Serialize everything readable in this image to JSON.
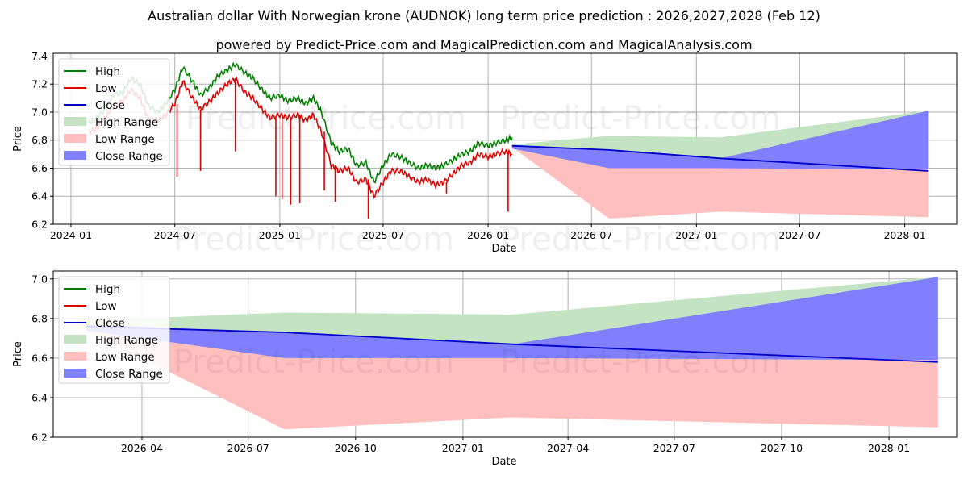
{
  "title": "Australian dollar With Norwegian krone (AUDNOK) long term price prediction : 2026,2027,2028 (Feb 12)",
  "subtitle": "powered by Predict-Price.com and MagicalPrediction.com and MagicalAnalysis.com",
  "watermark": "Predict-Price.com",
  "colors": {
    "high": "#008000",
    "low": "#e00000",
    "close": "#0000cc",
    "high_range": "#c3e3c3",
    "low_range": "#ffbfbf",
    "close_range": "#8080ff",
    "grid": "#b0b0b0"
  },
  "chart_data": [
    {
      "type": "line",
      "panel": "history-and-forecast",
      "xlabel": "Date",
      "ylabel": "Price",
      "xlim": [
        "2023-12-01",
        "2028-04-01"
      ],
      "ylim": [
        6.2,
        7.42
      ],
      "x_ticks": [
        "2024-01",
        "2024-07",
        "2025-01",
        "2025-07",
        "2026-01",
        "2026-07",
        "2027-01",
        "2027-07",
        "2028-01"
      ],
      "y_ticks": [
        6.2,
        6.4,
        6.6,
        6.8,
        7.0,
        7.2,
        7.4
      ],
      "grid": true,
      "legend": {
        "placement": "top-left",
        "entries": [
          "High",
          "Low",
          "Close",
          "High Range",
          "Low Range",
          "Close Range"
        ]
      },
      "history": {
        "dates": [
          "2024-02-01",
          "2024-02-15",
          "2024-03-01",
          "2024-03-15",
          "2024-04-01",
          "2024-04-15",
          "2024-05-01",
          "2024-05-15",
          "2024-06-01",
          "2024-06-15",
          "2024-07-01",
          "2024-07-15",
          "2024-08-01",
          "2024-08-15",
          "2024-09-01",
          "2024-09-15",
          "2024-10-01",
          "2024-10-15",
          "2024-11-01",
          "2024-11-15",
          "2024-12-01",
          "2024-12-15",
          "2025-01-01",
          "2025-01-15",
          "2025-02-01",
          "2025-02-15",
          "2025-03-01",
          "2025-03-15",
          "2025-04-01",
          "2025-04-15",
          "2025-05-01",
          "2025-05-15",
          "2025-06-01",
          "2025-06-15",
          "2025-07-01",
          "2025-07-15",
          "2025-08-01",
          "2025-08-15",
          "2025-09-01",
          "2025-09-15",
          "2025-10-01",
          "2025-10-15",
          "2025-11-01",
          "2025-11-15",
          "2025-12-01",
          "2025-12-15",
          "2026-01-01",
          "2026-01-15",
          "2026-02-01",
          "2026-02-12"
        ],
        "high": [
          6.92,
          6.96,
          7.02,
          7.12,
          7.14,
          7.24,
          7.2,
          7.05,
          7.0,
          7.06,
          7.16,
          7.32,
          7.22,
          7.12,
          7.18,
          7.26,
          7.3,
          7.34,
          7.28,
          7.24,
          7.16,
          7.1,
          7.12,
          7.08,
          7.1,
          7.06,
          7.1,
          7.0,
          6.78,
          6.72,
          6.74,
          6.62,
          6.64,
          6.5,
          6.62,
          6.7,
          6.68,
          6.64,
          6.6,
          6.62,
          6.6,
          6.62,
          6.66,
          6.7,
          6.72,
          6.78,
          6.76,
          6.78,
          6.8,
          6.82
        ],
        "low": [
          6.86,
          6.88,
          6.96,
          7.04,
          7.08,
          7.16,
          7.1,
          6.96,
          6.94,
          6.98,
          7.06,
          7.22,
          7.1,
          7.02,
          7.08,
          7.14,
          7.2,
          7.24,
          7.14,
          7.1,
          7.02,
          6.96,
          6.98,
          6.96,
          6.98,
          6.94,
          6.98,
          6.86,
          6.62,
          6.58,
          6.6,
          6.5,
          6.52,
          6.4,
          6.5,
          6.58,
          6.58,
          6.54,
          6.5,
          6.52,
          6.48,
          6.5,
          6.56,
          6.62,
          6.64,
          6.7,
          6.68,
          6.7,
          6.72,
          6.7
        ],
        "low_spikes": [
          {
            "date": "2024-07-05",
            "value": 6.54
          },
          {
            "date": "2024-08-15",
            "value": 6.58
          },
          {
            "date": "2024-10-15",
            "value": 6.72
          },
          {
            "date": "2024-12-25",
            "value": 6.4
          },
          {
            "date": "2025-01-05",
            "value": 6.38
          },
          {
            "date": "2025-01-20",
            "value": 6.34
          },
          {
            "date": "2025-02-05",
            "value": 6.35
          },
          {
            "date": "2025-03-20",
            "value": 6.44
          },
          {
            "date": "2025-04-08",
            "value": 6.36
          },
          {
            "date": "2025-06-05",
            "value": 6.24
          },
          {
            "date": "2025-10-20",
            "value": 6.42
          },
          {
            "date": "2026-02-05",
            "value": 6.29
          }
        ]
      },
      "forecast": {
        "dates": [
          "2026-02-12",
          "2026-08-01",
          "2027-02-12",
          "2028-02-12"
        ],
        "close": [
          6.76,
          6.73,
          6.67,
          6.58
        ],
        "high_range_upper": [
          6.77,
          6.83,
          6.82,
          7.01
        ],
        "low_range_lower": [
          6.75,
          6.24,
          6.29,
          6.25
        ],
        "close_range_upper": [
          6.76,
          6.73,
          6.67,
          7.01
        ],
        "close_range_lower": [
          6.74,
          6.6,
          6.6,
          6.59
        ]
      }
    },
    {
      "type": "line",
      "panel": "forecast-zoom",
      "xlabel": "Date",
      "ylabel": "Price",
      "xlim": [
        "2026-01-15",
        "2028-02-28"
      ],
      "ylim": [
        6.2,
        7.04
      ],
      "x_ticks": [
        "2026-04",
        "2026-07",
        "2026-10",
        "2027-01",
        "2027-04",
        "2027-07",
        "2027-10",
        "2028-01"
      ],
      "y_ticks": [
        6.2,
        6.4,
        6.6,
        6.8,
        7.0
      ],
      "grid": true,
      "legend": {
        "placement": "top-left",
        "entries": [
          "High",
          "Low",
          "Close",
          "High Range",
          "Low Range",
          "Close Range"
        ]
      },
      "forecast": {
        "dates": [
          "2026-02-12",
          "2026-08-01",
          "2027-02-12",
          "2028-02-12"
        ],
        "close": [
          6.76,
          6.73,
          6.67,
          6.58
        ],
        "high_range_upper": [
          6.79,
          6.83,
          6.82,
          7.01
        ],
        "low_range_lower": [
          6.74,
          6.24,
          6.3,
          6.25
        ],
        "close_range_upper": [
          6.77,
          6.73,
          6.67,
          7.01
        ],
        "close_range_lower": [
          6.74,
          6.6,
          6.6,
          6.59
        ]
      }
    }
  ]
}
